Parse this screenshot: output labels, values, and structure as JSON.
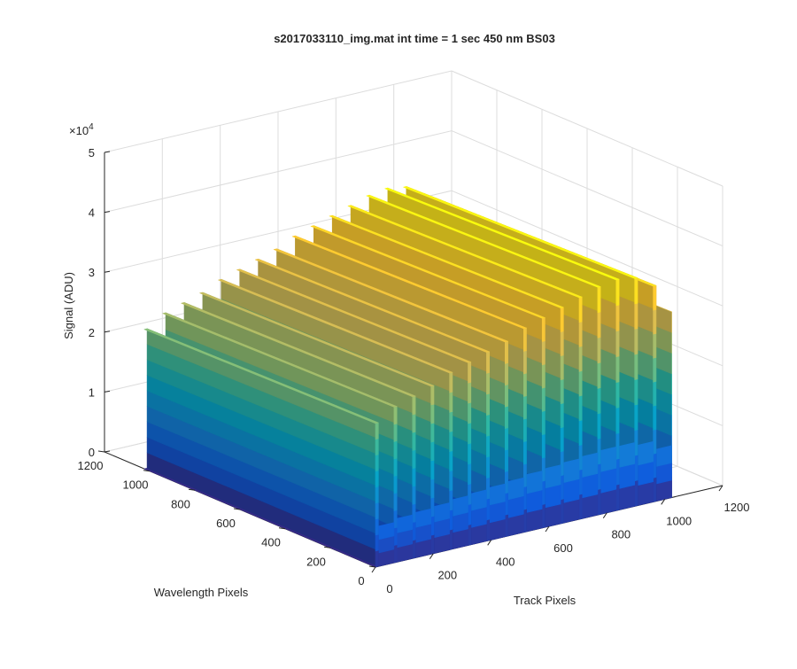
{
  "chart_data": {
    "type": "surface",
    "title": "s2017033110_img.mat int time = 1 sec  450 nm BS03",
    "xlabel": "Track Pixels",
    "ylabel": "Wavelength Pixels",
    "zlabel": "Signal (ADU)",
    "z_multiplier_label": "×10",
    "z_multiplier_exp": "4",
    "xlim": [
      0,
      1200
    ],
    "ylim": [
      0,
      1200
    ],
    "zlim": [
      0,
      50000
    ],
    "x_ticks": [
      "0",
      "200",
      "400",
      "600",
      "800",
      "1000",
      "1200"
    ],
    "y_ticks": [
      "0",
      "200",
      "400",
      "600",
      "800",
      "1000",
      "1200"
    ],
    "z_ticks": [
      "0",
      "1",
      "2",
      "3",
      "4",
      "5"
    ],
    "grid": true,
    "colormap": "parula",
    "colormap_stops": [
      "#352a87",
      "#0f5cdd",
      "#1481d6",
      "#06a4ca",
      "#2eb7a4",
      "#87bf77",
      "#d1bb59",
      "#fec832",
      "#f9fb0e"
    ],
    "floor_color": "#352a87",
    "surface_extent": {
      "x": [
        0,
        1024
      ],
      "y": [
        0,
        1024
      ]
    },
    "signal_region": {
      "y": [
        0,
        1024
      ]
    },
    "peak_tracks_x": [
      0,
      64,
      128,
      192,
      256,
      320,
      384,
      448,
      512,
      576,
      640,
      704,
      768,
      832,
      896,
      960,
      1024
    ],
    "peak_values": [
      24000,
      26000,
      27000,
      28000,
      29500,
      30500,
      31500,
      32500,
      34000,
      35000,
      36000,
      37000,
      38000,
      38500,
      38000,
      36000,
      31000
    ],
    "floor_value": 0
  }
}
